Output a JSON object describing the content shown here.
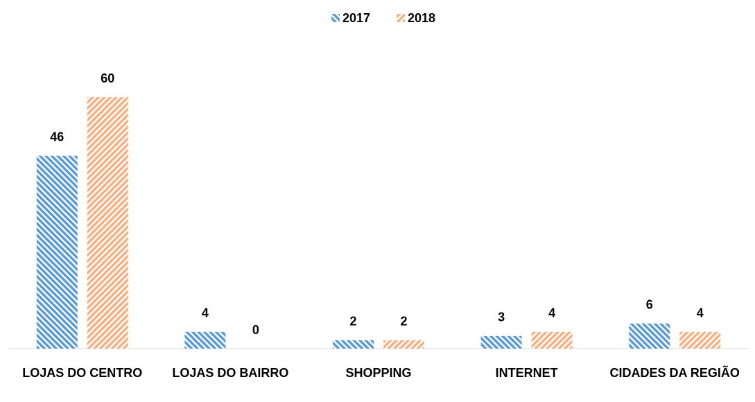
{
  "chart_data": {
    "type": "bar",
    "categories": [
      "LOJAS DO CENTRO",
      "LOJAS DO BAIRRO",
      "SHOPPING",
      "INTERNET",
      "CIDADES DA REGIÃO"
    ],
    "series": [
      {
        "name": "2017",
        "color": "#5b9bd5",
        "values": [
          46,
          4,
          2,
          3,
          6
        ]
      },
      {
        "name": "2018",
        "color": "#f4b183",
        "values": [
          60,
          0,
          2,
          4,
          4
        ]
      }
    ],
    "legend": "top"
  }
}
